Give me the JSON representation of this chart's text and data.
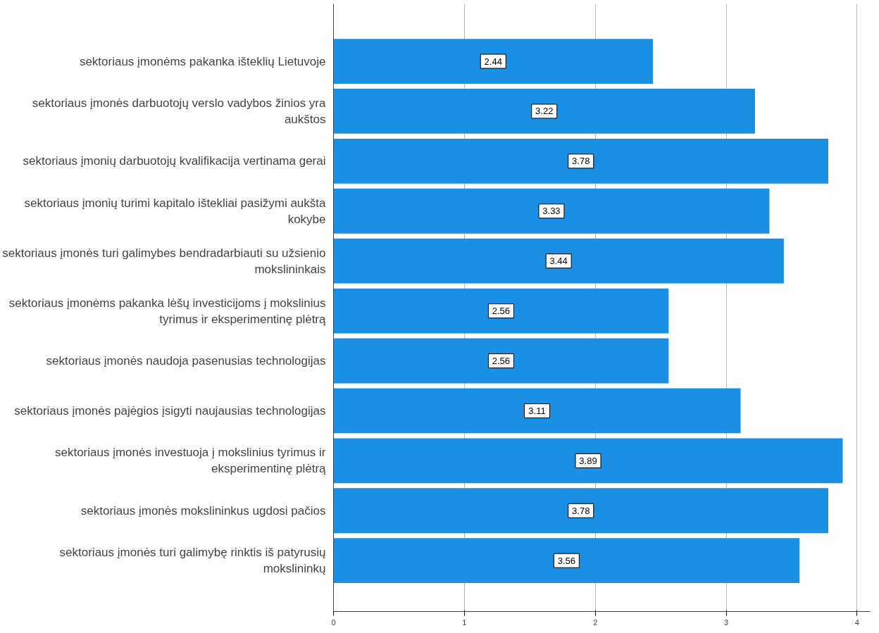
{
  "chart_data": {
    "type": "bar",
    "orientation": "horizontal",
    "categories": [
      "sektoriaus įmonėms pakanka išteklių Lietuvoje",
      "sektoriaus įmonės darbuotojų verslo vadybos žinios yra aukštos",
      "sektoriaus įmonių darbuotojų kvalifikacija vertinama gerai",
      "sektoriaus įmonių turimi kapitalo ištekliai pasižymi aukšta kokybe",
      "sektoriaus įmonės turi galimybes bendradarbiauti su užsienio mokslininkais",
      "sektoriaus įmonėms pakanka lėšų investicijoms į mokslinius tyrimus ir eksperimentinę plėtrą",
      "sektoriaus įmonės naudoja pasenusias technologijas",
      "sektoriaus įmonės pajėgios įsigyti naujausias technologijas",
      "sektoriaus įmonės investuoja į mokslinius tyrimus ir eksperimentinę plėtrą",
      "sektoriaus įmonės mokslininkus ugdosi pačios",
      "sektoriaus įmonės turi galimybę rinktis iš patyrusių mokslininkų"
    ],
    "values": [
      2.44,
      3.22,
      3.78,
      3.33,
      3.44,
      2.56,
      2.56,
      3.11,
      3.89,
      3.78,
      3.56
    ],
    "color": "#1a8fe3",
    "xlim": [
      0,
      4.1
    ],
    "xticks": [
      0,
      1,
      2,
      3,
      4
    ],
    "grid": "x",
    "data_labels": true
  }
}
